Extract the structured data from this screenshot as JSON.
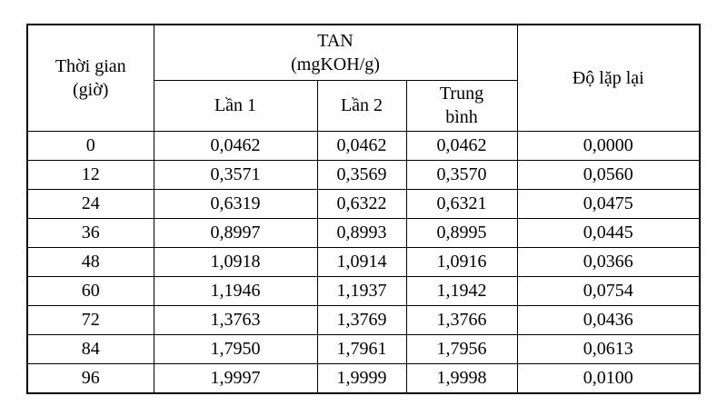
{
  "table": {
    "header": {
      "time": [
        "Thời gian",
        "(giờ)"
      ],
      "tan": [
        "TAN",
        "(mgKOH/g)"
      ],
      "run1": "Lần 1",
      "run2": "Lần 2",
      "mean": [
        "Trung",
        "bình"
      ],
      "repeatability": "Độ lặp lại"
    },
    "rows": [
      [
        "0",
        "0,0462",
        "0,0462",
        "0,0462",
        "0,0000"
      ],
      [
        "12",
        "0,3571",
        "0,3569",
        "0,3570",
        "0,0560"
      ],
      [
        "24",
        "0,6319",
        "0,6322",
        "0,6321",
        "0,0475"
      ],
      [
        "36",
        "0,8997",
        "0,8993",
        "0,8995",
        "0,0445"
      ],
      [
        "48",
        "1,0918",
        "1,0914",
        "1,0916",
        "0,0366"
      ],
      [
        "60",
        "1,1946",
        "1,1937",
        "1,1942",
        "0,0754"
      ],
      [
        "72",
        "1,3763",
        "1,3769",
        "1,3766",
        "0,0436"
      ],
      [
        "84",
        "1,7950",
        "1,7961",
        "1,7956",
        "0,0613"
      ],
      [
        "96",
        "1,9997",
        "1,9999",
        "1,9998",
        "0,0100"
      ]
    ]
  }
}
